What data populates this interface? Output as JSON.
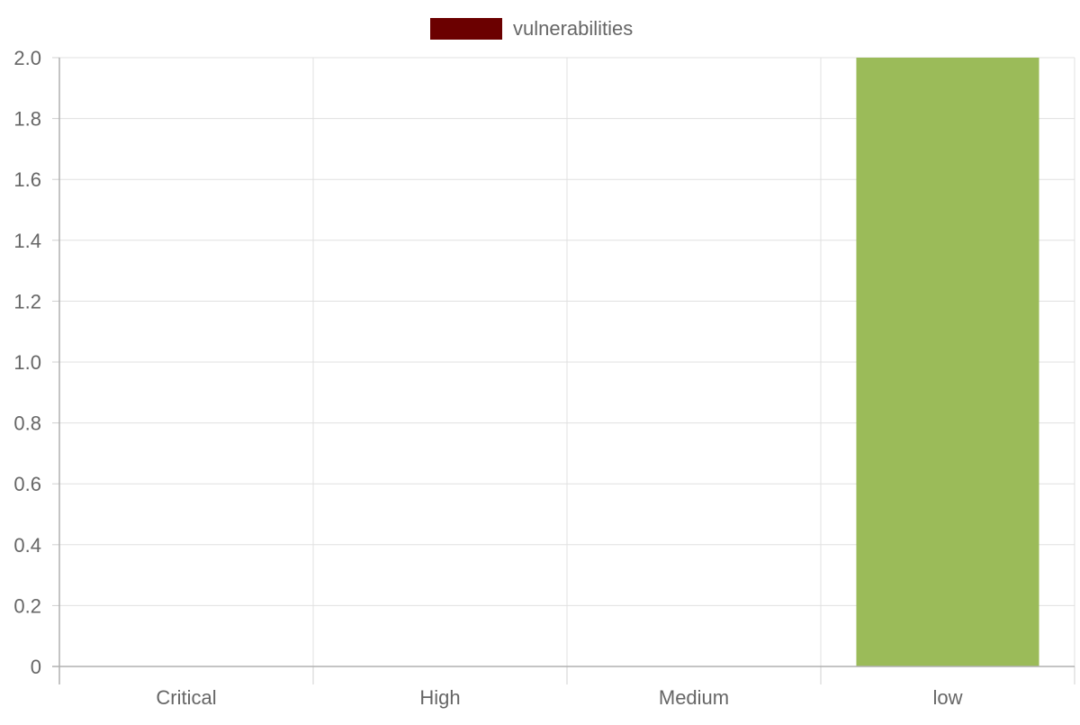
{
  "chart_data": {
    "type": "bar",
    "categories": [
      "Critical",
      "High",
      "Medium",
      "low"
    ],
    "series": [
      {
        "name": "vulnerabilities",
        "values": [
          0,
          0,
          0,
          2
        ],
        "legend_color": "#6b0000",
        "bar_colors": [
          "#6b0000",
          "#c0504d",
          "#f79646",
          "#9bbb59"
        ]
      }
    ],
    "title": "",
    "xlabel": "",
    "ylabel": "",
    "ylim": [
      0,
      2
    ],
    "yticks": [
      "0",
      "0.2",
      "0.4",
      "0.6",
      "0.8",
      "1.0",
      "1.2",
      "1.4",
      "1.6",
      "1.8",
      "2.0"
    ],
    "grid": true,
    "legend": "top-center"
  }
}
